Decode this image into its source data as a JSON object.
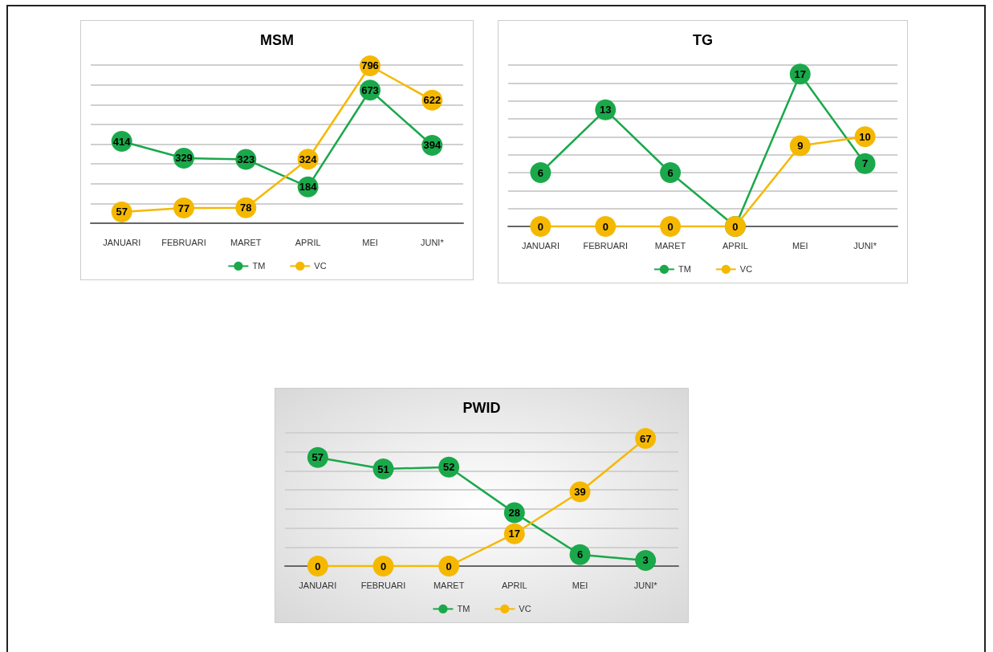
{
  "chart_data": [
    {
      "type": "line",
      "title": "MSM",
      "categories": [
        "JANUARI",
        "FEBRUARI",
        "MARET",
        "APRIL",
        "MEI",
        "JUNI*"
      ],
      "series": [
        {
          "name": "TM",
          "color": "#1aa84b",
          "values": [
            414,
            329,
            323,
            184,
            673,
            394
          ]
        },
        {
          "name": "VC",
          "color": "#f5b800",
          "values": [
            57,
            77,
            78,
            324,
            796,
            622
          ]
        }
      ],
      "data_labels": true,
      "legend": "bottom",
      "grid": "y",
      "marker": "circle"
    },
    {
      "type": "line",
      "title": "TG",
      "categories": [
        "JANUARI",
        "FEBRUARI",
        "MARET",
        "APRIL",
        "MEI",
        "JUNI*"
      ],
      "series": [
        {
          "name": "TM",
          "color": "#1aa84b",
          "values": [
            6,
            13,
            6,
            0,
            17,
            7
          ],
          "value_labels": [
            "6",
            "13",
            "6",
            null,
            "17",
            "7"
          ]
        },
        {
          "name": "VC",
          "color": "#f5b800",
          "values": [
            0,
            0,
            0,
            0,
            9,
            10
          ],
          "value_labels": [
            "0",
            "0",
            "0",
            "0",
            "9",
            "10"
          ]
        }
      ],
      "legend": "bottom",
      "grid": "y",
      "marker": "circle"
    },
    {
      "type": "line",
      "title": "PWID",
      "categories": [
        "JANUARI",
        "FEBRUARI",
        "MARET",
        "APRIL",
        "MEI",
        "JUNI*"
      ],
      "series": [
        {
          "name": "TM",
          "color": "#1aa84b",
          "values": [
            57,
            51,
            52,
            28,
            6,
            3
          ]
        },
        {
          "name": "VC",
          "color": "#f5b800",
          "values": [
            0,
            0,
            0,
            17,
            39,
            67
          ]
        }
      ],
      "data_labels": true,
      "legend": "bottom",
      "grid": "y",
      "marker": "circle"
    }
  ]
}
